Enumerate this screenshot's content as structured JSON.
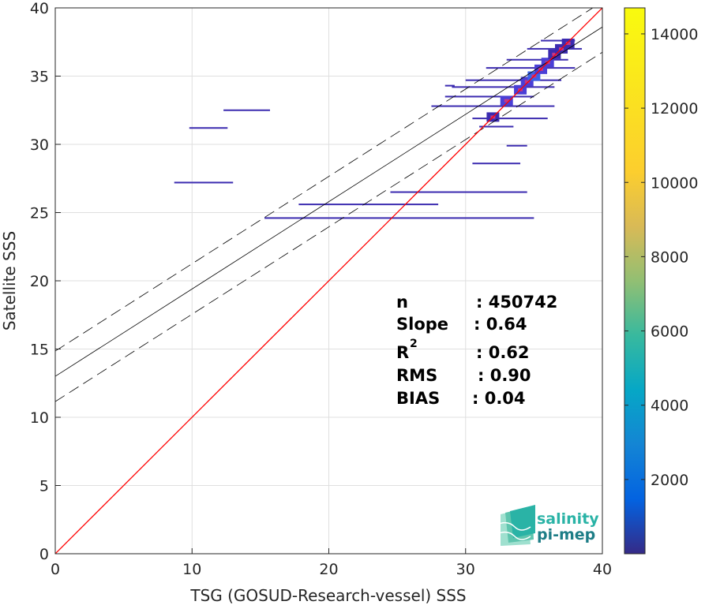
{
  "chart_data": {
    "type": "heatmap",
    "xlabel": "TSG (GOSUD-Research-vessel) SSS",
    "ylabel": "Satellite SSS",
    "xlim": [
      0,
      40
    ],
    "ylim": [
      0,
      40
    ],
    "xticks": [
      "0",
      "10",
      "20",
      "30",
      "40"
    ],
    "yticks": [
      "0",
      "5",
      "10",
      "15",
      "20",
      "25",
      "30",
      "35",
      "40"
    ],
    "grid": true,
    "identity_line": {
      "color": "#ff0000",
      "x": [
        0,
        40
      ],
      "y": [
        0,
        40
      ]
    },
    "regression_line": {
      "slope": 0.64,
      "intercept": 13.0,
      "color": "#000000"
    },
    "confidence_lines": {
      "offset": 1.85,
      "style": "dashed",
      "color": "#000000"
    },
    "colorbar": {
      "min": 0,
      "max": 14700,
      "ticks": [
        "2000",
        "4000",
        "6000",
        "8000",
        "10000",
        "12000",
        "14000"
      ],
      "colormap": "parula"
    },
    "density_segments": [
      {
        "x0": 8.7,
        "x1": 13.0,
        "y": 27.2
      },
      {
        "x0": 9.8,
        "x1": 12.6,
        "y": 31.2
      },
      {
        "x0": 12.3,
        "x1": 15.7,
        "y": 32.5
      },
      {
        "x0": 15.3,
        "x1": 35.0,
        "y": 24.6
      },
      {
        "x0": 17.8,
        "x1": 28.0,
        "y": 25.6
      },
      {
        "x0": 24.5,
        "x1": 34.5,
        "y": 26.5
      },
      {
        "x0": 30.5,
        "x1": 34.0,
        "y": 28.6
      },
      {
        "x0": 33.0,
        "x1": 34.5,
        "y": 29.9
      },
      {
        "x0": 27.5,
        "x1": 36.5,
        "y": 32.8
      },
      {
        "x0": 28.5,
        "x1": 35.0,
        "y": 33.5
      },
      {
        "x0": 29.0,
        "x1": 36.5,
        "y": 34.2
      },
      {
        "x0": 30.0,
        "x1": 37.0,
        "y": 34.7
      },
      {
        "x0": 31.5,
        "x1": 38.0,
        "y": 35.6
      },
      {
        "x0": 28.5,
        "x1": 29.2,
        "y": 34.3
      },
      {
        "x0": 33.0,
        "x1": 37.5,
        "y": 36.2
      },
      {
        "x0": 34.5,
        "x1": 38.5,
        "y": 37.0
      },
      {
        "x0": 35.5,
        "x1": 38.0,
        "y": 37.6
      },
      {
        "x0": 30.5,
        "x1": 36.0,
        "y": 31.9
      },
      {
        "x0": 31.0,
        "x1": 33.5,
        "y": 31.3
      }
    ],
    "density_core": [
      {
        "x": 32.0,
        "y": 32.0,
        "count": 1800
      },
      {
        "x": 33.0,
        "y": 33.2,
        "count": 2500
      },
      {
        "x": 34.0,
        "y": 34.0,
        "count": 3000
      },
      {
        "x": 34.5,
        "y": 34.6,
        "count": 3500
      },
      {
        "x": 35.0,
        "y": 35.0,
        "count": 3800
      },
      {
        "x": 35.5,
        "y": 35.5,
        "count": 3200
      },
      {
        "x": 36.0,
        "y": 36.0,
        "count": 2500
      },
      {
        "x": 36.5,
        "y": 36.6,
        "count": 2000
      },
      {
        "x": 37.0,
        "y": 37.0,
        "count": 1500
      },
      {
        "x": 37.5,
        "y": 37.4,
        "count": 1200
      }
    ]
  },
  "stats": [
    {
      "label": "n",
      "value": ": 450742"
    },
    {
      "label": "Slope",
      "value": ": 0.64"
    },
    {
      "label": "R",
      "value": ": 0.62",
      "superscript": "2"
    },
    {
      "label": "RMS",
      "value": ": 0.90"
    },
    {
      "label": "BIAS",
      "value": ": 0.04"
    }
  ],
  "logo": {
    "line1": "salinity",
    "line2": "pi-mep",
    "color1": "#2ab3a6",
    "color2": "#1d7d86"
  },
  "colors": {
    "identity": "#ff0000",
    "grid": "#dfdfdf",
    "low_density": "#3b2bb0"
  }
}
